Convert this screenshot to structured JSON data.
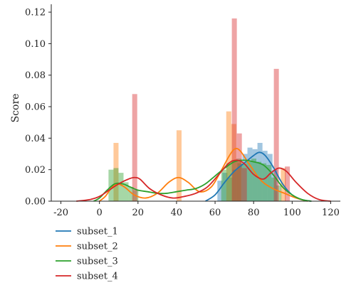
{
  "chart_data": {
    "type": "bar",
    "title": "",
    "xlabel": "",
    "ylabel": "Score",
    "xlim": [
      -25,
      125
    ],
    "ylim": [
      0,
      0.125
    ],
    "xticks": [
      -20,
      0,
      20,
      40,
      60,
      80,
      100,
      120
    ],
    "yticks": [
      0.0,
      0.02,
      0.04,
      0.06,
      0.08,
      0.1,
      0.12
    ],
    "xtick_labels": [
      "-20",
      "0",
      "20",
      "40",
      "60",
      "80",
      "100",
      "120"
    ],
    "ytick_labels": [
      "0.00",
      "0.02",
      "0.04",
      "0.06",
      "0.08",
      "0.10",
      "0.12"
    ],
    "grid": false,
    "legend_position": "bottom-left, below plot",
    "bin_width": 2.6,
    "series": [
      {
        "name": "subset_1",
        "color": "#1f77b4",
        "histogram": [
          {
            "x": 62.5,
            "y": 0.013
          },
          {
            "x": 65.1,
            "y": 0.018
          },
          {
            "x": 67.7,
            "y": 0.015
          },
          {
            "x": 70.3,
            "y": 0.02
          },
          {
            "x": 72.9,
            "y": 0.024
          },
          {
            "x": 75.5,
            "y": 0.03
          },
          {
            "x": 78.1,
            "y": 0.034
          },
          {
            "x": 80.7,
            "y": 0.033
          },
          {
            "x": 83.3,
            "y": 0.037
          },
          {
            "x": 85.9,
            "y": 0.032
          },
          {
            "x": 88.5,
            "y": 0.03
          },
          {
            "x": 91.1,
            "y": 0.02
          }
        ],
        "kde": [
          [
            55,
            0.0
          ],
          [
            60,
            0.004
          ],
          [
            65,
            0.012
          ],
          [
            70,
            0.019
          ],
          [
            75,
            0.024
          ],
          [
            80,
            0.029
          ],
          [
            83,
            0.031
          ],
          [
            86,
            0.029
          ],
          [
            90,
            0.022
          ],
          [
            95,
            0.011
          ],
          [
            100,
            0.004
          ],
          [
            105,
            0.001
          ],
          [
            110,
            0.0
          ]
        ]
      },
      {
        "name": "subset_2",
        "color": "#ff7f0e",
        "histogram": [
          {
            "x": 8.6,
            "y": 0.037
          },
          {
            "x": 41.3,
            "y": 0.045
          },
          {
            "x": 67.1,
            "y": 0.057
          },
          {
            "x": 69.7,
            "y": 0.049
          },
          {
            "x": 72.3,
            "y": 0.025
          },
          {
            "x": 95.4,
            "y": 0.021
          }
        ],
        "kde": [
          [
            0,
            0.0
          ],
          [
            3,
            0.003
          ],
          [
            6,
            0.008
          ],
          [
            9,
            0.011
          ],
          [
            13,
            0.009
          ],
          [
            18,
            0.004
          ],
          [
            24,
            0.002
          ],
          [
            30,
            0.005
          ],
          [
            36,
            0.012
          ],
          [
            41,
            0.015
          ],
          [
            46,
            0.012
          ],
          [
            52,
            0.006
          ],
          [
            58,
            0.009
          ],
          [
            63,
            0.019
          ],
          [
            67,
            0.028
          ],
          [
            70,
            0.033
          ],
          [
            73,
            0.032
          ],
          [
            78,
            0.023
          ],
          [
            84,
            0.013
          ],
          [
            90,
            0.008
          ],
          [
            96,
            0.005
          ],
          [
            102,
            0.002
          ],
          [
            108,
            0.0
          ]
        ]
      },
      {
        "name": "subset_3",
        "color": "#2ca02c",
        "histogram": [
          {
            "x": 6.0,
            "y": 0.02
          },
          {
            "x": 8.6,
            "y": 0.021
          },
          {
            "x": 11.2,
            "y": 0.018
          },
          {
            "x": 13.8,
            "y": 0.012
          },
          {
            "x": 16.4,
            "y": 0.009
          },
          {
            "x": 18.9,
            "y": 0.007
          },
          {
            "x": 64.5,
            "y": 0.02
          },
          {
            "x": 67.1,
            "y": 0.024
          },
          {
            "x": 69.7,
            "y": 0.026
          },
          {
            "x": 72.3,
            "y": 0.027
          },
          {
            "x": 74.9,
            "y": 0.024
          },
          {
            "x": 77.5,
            "y": 0.025
          },
          {
            "x": 80.1,
            "y": 0.027
          },
          {
            "x": 82.7,
            "y": 0.025
          },
          {
            "x": 85.3,
            "y": 0.024
          },
          {
            "x": 87.9,
            "y": 0.023
          },
          {
            "x": 90.5,
            "y": 0.015
          },
          {
            "x": 93.1,
            "y": 0.01
          }
        ],
        "kde": [
          [
            -3,
            0.0
          ],
          [
            0,
            0.002
          ],
          [
            4,
            0.007
          ],
          [
            8,
            0.011
          ],
          [
            12,
            0.011
          ],
          [
            16,
            0.009
          ],
          [
            20,
            0.007
          ],
          [
            25,
            0.006
          ],
          [
            30,
            0.005
          ],
          [
            35,
            0.005
          ],
          [
            40,
            0.006
          ],
          [
            45,
            0.007
          ],
          [
            50,
            0.008
          ],
          [
            55,
            0.011
          ],
          [
            60,
            0.016
          ],
          [
            65,
            0.021
          ],
          [
            70,
            0.025
          ],
          [
            75,
            0.026
          ],
          [
            80,
            0.025
          ],
          [
            85,
            0.023
          ],
          [
            90,
            0.017
          ],
          [
            95,
            0.009
          ],
          [
            100,
            0.004
          ],
          [
            105,
            0.001
          ],
          [
            110,
            0.0
          ]
        ]
      },
      {
        "name": "subset_4",
        "color": "#d62728",
        "histogram": [
          {
            "x": 18.3,
            "y": 0.068
          },
          {
            "x": 70.0,
            "y": 0.116
          },
          {
            "x": 72.6,
            "y": 0.043
          },
          {
            "x": 75.2,
            "y": 0.021
          },
          {
            "x": 91.8,
            "y": 0.084
          },
          {
            "x": 97.5,
            "y": 0.022
          }
        ],
        "kde": [
          [
            -12,
            0.0
          ],
          [
            -5,
            0.001
          ],
          [
            0,
            0.003
          ],
          [
            5,
            0.007
          ],
          [
            10,
            0.011
          ],
          [
            15,
            0.014
          ],
          [
            18,
            0.015
          ],
          [
            21,
            0.014
          ],
          [
            26,
            0.008
          ],
          [
            32,
            0.004
          ],
          [
            38,
            0.002
          ],
          [
            44,
            0.003
          ],
          [
            50,
            0.005
          ],
          [
            56,
            0.009
          ],
          [
            62,
            0.017
          ],
          [
            67,
            0.024
          ],
          [
            71,
            0.026
          ],
          [
            75,
            0.024
          ],
          [
            80,
            0.017
          ],
          [
            85,
            0.014
          ],
          [
            89,
            0.018
          ],
          [
            93,
            0.021
          ],
          [
            97,
            0.019
          ],
          [
            102,
            0.012
          ],
          [
            108,
            0.005
          ],
          [
            114,
            0.001
          ],
          [
            120,
            0.0
          ]
        ]
      }
    ]
  }
}
